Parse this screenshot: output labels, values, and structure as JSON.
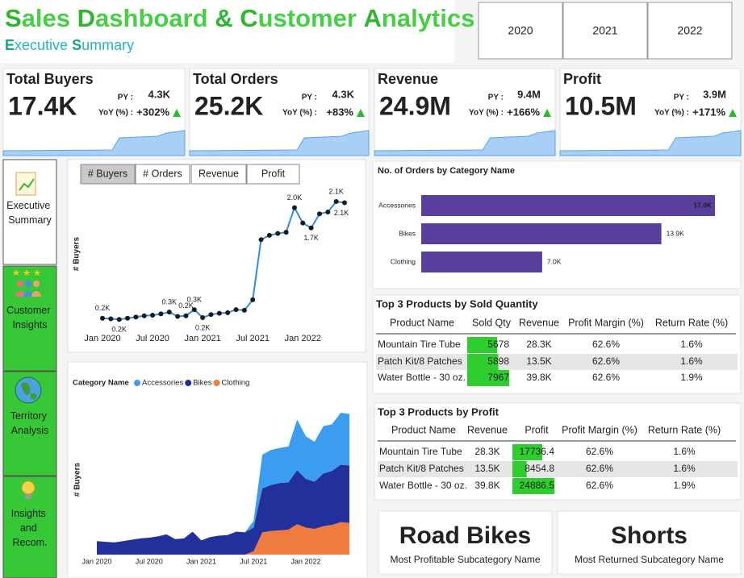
{
  "header": {
    "title": "Sales Dashboard & Customer Analytics",
    "subtitle": "Executive Summary"
  },
  "year_filter": [
    "2020",
    "2021",
    "2022"
  ],
  "kpis": [
    {
      "title": "Total Buyers",
      "value": "17.4K",
      "py_label": "PY :",
      "py": "4.3K",
      "yoy_label": "YoY (%) :",
      "yoy": "+302%"
    },
    {
      "title": "Total Orders",
      "value": "25.2K",
      "py_label": "PY :",
      "py": "4.3K",
      "yoy_label": "YoY (%) :",
      "yoy": "+83%"
    },
    {
      "title": "Revenue",
      "value": "24.9M",
      "py_label": "PY :",
      "py": "9.4M",
      "yoy_label": "YoY (%) :",
      "yoy": "+166%"
    },
    {
      "title": "Profit",
      "value": "10.5M",
      "py_label": "PY :",
      "py": "3.9M",
      "yoy_label": "YoY (%) :",
      "yoy": "+171%"
    }
  ],
  "nav": [
    "Executive Summary",
    "Customer Insights",
    "Territory Analysis",
    "Insights and Recom."
  ],
  "metric_tabs": [
    "# Buyers",
    "# Orders",
    "Revenue",
    "Profit"
  ],
  "chart_data": [
    {
      "type": "line",
      "y_label": "# Buyers",
      "color": "#2f8ce8",
      "marker_color": "#1a1a1a",
      "categories": [
        "Jan 2020",
        null,
        null,
        null,
        null,
        null,
        "Jul 2020",
        null,
        null,
        null,
        null,
        null,
        "Jan 2021",
        null,
        null,
        null,
        null,
        null,
        "Jul 2021",
        null,
        null,
        null,
        null,
        null,
        "Jan 2022",
        null,
        null,
        null,
        null,
        null
      ],
      "values": [
        0.2,
        0.19,
        0.18,
        0.2,
        0.22,
        0.24,
        0.25,
        0.27,
        0.3,
        0.23,
        0.24,
        0.34,
        0.21,
        0.26,
        0.28,
        0.29,
        0.34,
        0.33,
        0.5,
        1.48,
        1.55,
        1.58,
        1.6,
        2.0,
        1.75,
        1.67,
        1.9,
        1.93,
        2.1,
        2.08
      ],
      "value_labels": [
        "0.2K",
        null,
        "0.2K",
        null,
        null,
        null,
        null,
        null,
        "0.3K",
        null,
        "0.2K",
        "0.3K",
        "0.2K",
        null,
        null,
        null,
        null,
        null,
        null,
        null,
        null,
        null,
        null,
        "2.0K",
        null,
        "1.7K",
        null,
        null,
        "2.1K",
        "2.1K"
      ]
    },
    {
      "type": "bar",
      "orientation": "horizontal",
      "title": "No. of Orders by Category Name",
      "color": "#583f9c",
      "categories": [
        "Accessories",
        "Bikes",
        "Clothing"
      ],
      "values": [
        17.0,
        13.9,
        7.0
      ],
      "value_labels": [
        "17.0K",
        "13.9K",
        "7.0K"
      ]
    },
    {
      "type": "area",
      "stacked": true,
      "y_label": "# Buyers",
      "legend_title": "Category Name",
      "categories": [
        "Jan 2020",
        null,
        null,
        null,
        null,
        null,
        "Jul 2020",
        null,
        null,
        null,
        null,
        null,
        "Jan 2021",
        null,
        null,
        null,
        null,
        null,
        "Jul 2021",
        null,
        null,
        null,
        null,
        null,
        "Jan 2022",
        null,
        null,
        null,
        null,
        null
      ],
      "series": [
        {
          "name": "Accessories",
          "color": "#3a9df0",
          "values": [
            0,
            0,
            0,
            0,
            0,
            0,
            0,
            0,
            0,
            0,
            0,
            0,
            0,
            0,
            0,
            0,
            0,
            0,
            100,
            500,
            520,
            520,
            530,
            750,
            630,
            590,
            700,
            690,
            770,
            760
          ]
        },
        {
          "name": "Bikes",
          "color": "#22309c",
          "values": [
            200,
            190,
            180,
            200,
            220,
            240,
            250,
            270,
            300,
            230,
            240,
            340,
            210,
            260,
            280,
            290,
            340,
            330,
            350,
            650,
            680,
            700,
            700,
            800,
            720,
            700,
            780,
            800,
            850,
            850
          ]
        },
        {
          "name": "Clothing",
          "color": "#ef7b3f",
          "values": [
            0,
            0,
            0,
            0,
            0,
            0,
            0,
            0,
            0,
            0,
            0,
            0,
            0,
            0,
            0,
            0,
            0,
            0,
            50,
            330,
            350,
            360,
            370,
            450,
            400,
            380,
            420,
            440,
            480,
            470
          ]
        }
      ]
    }
  ],
  "tables": [
    {
      "title": "Top 3 Products by Sold Quantity",
      "columns": [
        "Product Name",
        "Sold Qty",
        "Revenue",
        "Profit Margin (%)",
        "Return Rate (%)"
      ],
      "rows": [
        [
          "Mountain Tire Tube",
          5678,
          "28.3K",
          "62.6%",
          "1.6%"
        ],
        [
          "Patch Kit/8 Patches",
          5898,
          "13.5K",
          "62.6%",
          "1.6%"
        ],
        [
          "Water Bottle - 30 oz.",
          7967,
          "39.8K",
          "62.6%",
          "1.9%"
        ]
      ]
    },
    {
      "title": "Top 3 Products by Profit",
      "columns": [
        "Product Name",
        "Revenue",
        "Profit",
        "Profit Margin (%)",
        "Return Rate (%)"
      ],
      "rows": [
        [
          "Mountain Tire Tube",
          "28.3K",
          17736.4,
          "62.6%",
          "1.6%"
        ],
        [
          "Patch Kit/8 Patches",
          "13.5K",
          8454.8,
          "62.6%",
          "1.6%"
        ],
        [
          "Water Bottle - 30 oz.",
          "39.8K",
          24886.5,
          "62.6%",
          "1.9%"
        ]
      ]
    }
  ],
  "cards": [
    {
      "value": "Road Bikes",
      "label": "Most Profitable Subcategory Name"
    },
    {
      "value": "Shorts",
      "label": "Most Returned Subcategory Name"
    }
  ]
}
